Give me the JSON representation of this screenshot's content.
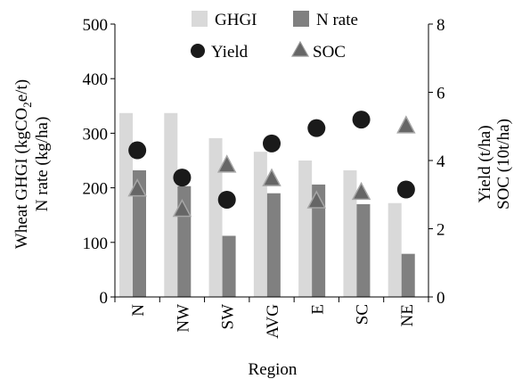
{
  "chart_data": {
    "type": "bar",
    "categories": [
      "N",
      "NW",
      "SW",
      "AVG",
      "E",
      "SC",
      "NE"
    ],
    "xlabel": "Region",
    "ylabel_left_line1": "Wheat GHGI (kgCO",
    "ylabel_left_sub": "2",
    "ylabel_left_line1_end": "e/t)",
    "ylabel_left_line2": "N rate (kg/ha)",
    "ylabel_right_line1": "Yield (t/ha)",
    "ylabel_right_line2": "SOC (10t/ha)",
    "ylim_left": [
      0,
      500
    ],
    "ylim_right": [
      0,
      8
    ],
    "left_ticks": [
      "0",
      "100",
      "200",
      "300",
      "400",
      "500"
    ],
    "right_ticks": [
      "0",
      "2",
      "4",
      "6",
      "8"
    ],
    "legend": [
      "GHGI",
      "N rate",
      "Yield",
      "SOC"
    ],
    "series": [
      {
        "name": "GHGI",
        "axis": "left",
        "kind": "bar",
        "color": "#d9d9d9",
        "values": [
          337,
          337,
          291,
          266,
          250,
          232,
          172
        ]
      },
      {
        "name": "N rate",
        "axis": "left",
        "kind": "bar",
        "color": "#808080",
        "values": [
          232,
          203,
          112,
          190,
          206,
          170,
          79
        ]
      },
      {
        "name": "Yield",
        "axis": "right",
        "kind": "marker",
        "marker": "circle",
        "color": "#1a1a1a",
        "values": [
          4.3,
          3.5,
          2.85,
          4.5,
          4.95,
          5.2,
          3.15
        ]
      },
      {
        "name": "SOC",
        "axis": "right",
        "kind": "marker",
        "marker": "triangle",
        "color": "#666666",
        "values": [
          3.2,
          2.6,
          3.9,
          3.5,
          2.85,
          3.1,
          5.05
        ]
      }
    ]
  }
}
